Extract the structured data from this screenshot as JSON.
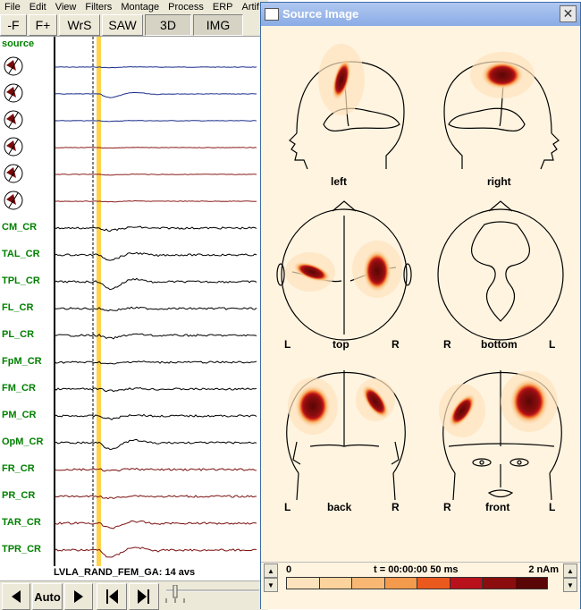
{
  "menu": [
    "File",
    "Edit",
    "View",
    "Filters",
    "Montage",
    "Process",
    "ERP",
    "Artif"
  ],
  "toolbar": [
    {
      "label": "-F",
      "selected": false
    },
    {
      "label": "F+",
      "selected": false
    },
    {
      "label": "WrS",
      "selected": false
    },
    {
      "label": "SAW",
      "selected": false
    },
    {
      "label": "3D",
      "selected": true
    },
    {
      "label": "IMG",
      "selected": true
    }
  ],
  "channels": {
    "source_label": "source",
    "source_count": 6,
    "labels": [
      "CM_CR",
      "TAL_CR",
      "TPL_CR",
      "FL_CR",
      "PL_CR",
      "FpM_CR",
      "FM_CR",
      "PM_CR",
      "OpM_CR",
      "FR_CR",
      "PR_CR",
      "TAR_CR",
      "TPR_CR"
    ]
  },
  "status": "LVLA_RAND_FEM_GA: 14 avs",
  "bottombar": {
    "auto_label": "Auto"
  },
  "source_window": {
    "title": "Source Image",
    "views": {
      "left": "left",
      "right": "right",
      "top": "top",
      "bottom": "bottom",
      "back": "back",
      "front": "front",
      "L": "L",
      "R": "R"
    },
    "scale": {
      "min": "0",
      "time": "t = 00:00:00  50 ms",
      "max": "2 nAm",
      "colors": [
        "#fde3bd",
        "#fcd39c",
        "#f8b873",
        "#f39a4c",
        "#ea5a1e",
        "#b8111b",
        "#8b0d0d",
        "#5a0606"
      ]
    }
  },
  "colors": {
    "source_trace": "#1a2f8a",
    "source_trace_alt": "#8b1a1a",
    "channel_trace": "#000000",
    "right_trace": "#7a1010",
    "label_green": "#008000"
  }
}
